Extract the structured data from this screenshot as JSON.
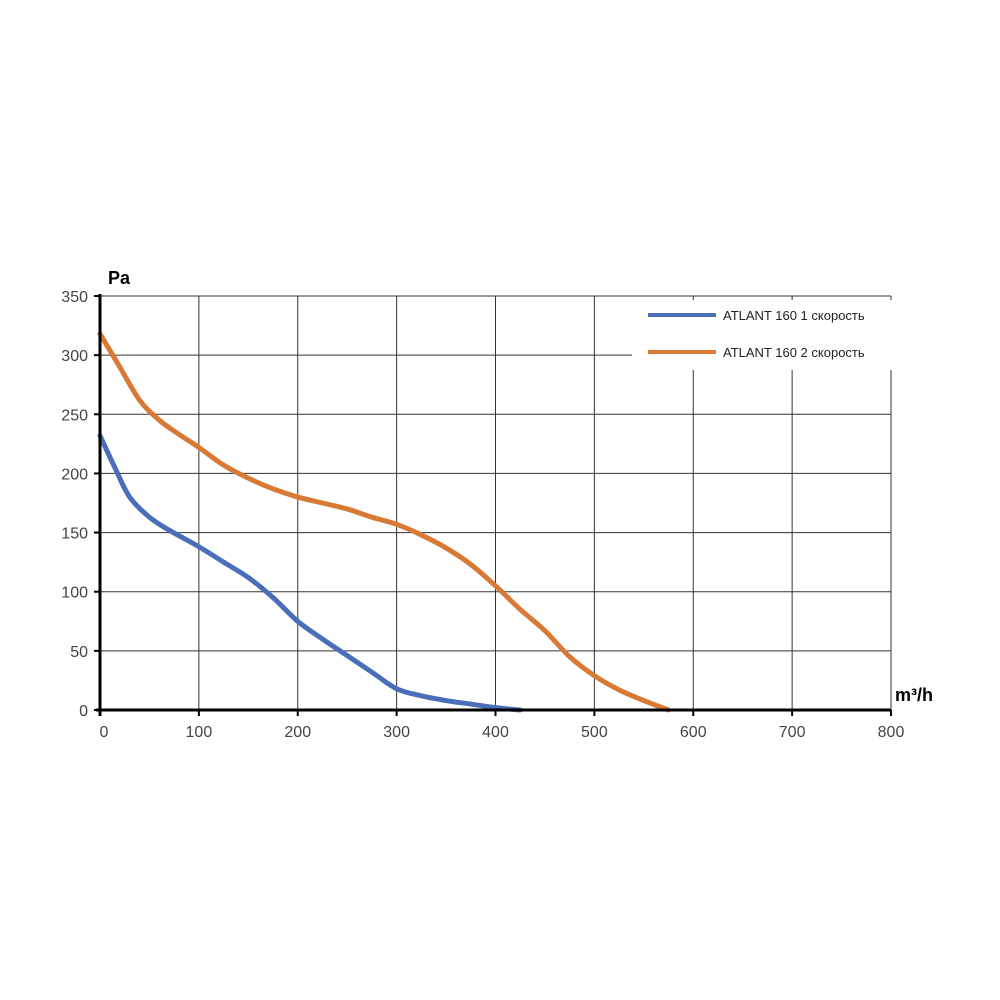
{
  "chart_data": {
    "type": "line",
    "title": "",
    "xlabel": "m³/h",
    "ylabel": "Pa",
    "xlim": [
      0,
      800
    ],
    "ylim": [
      0,
      350
    ],
    "xticks": [
      0,
      100,
      200,
      300,
      400,
      500,
      600,
      700,
      800
    ],
    "yticks": [
      0,
      50,
      100,
      150,
      200,
      250,
      300,
      350
    ],
    "grid": true,
    "legend_placement": "top-right",
    "series": [
      {
        "name": "ATLANT 160 1 скорость",
        "color": "#4a6fb8",
        "x": [
          0,
          15,
          30,
          50,
          70,
          100,
          125,
          150,
          175,
          200,
          225,
          250,
          275,
          300,
          325,
          350,
          375,
          400,
          425
        ],
        "y": [
          232,
          205,
          180,
          163,
          152,
          138,
          125,
          112,
          95,
          75,
          60,
          46,
          32,
          18,
          12,
          8,
          5,
          2,
          0
        ]
      },
      {
        "name": "ATLANT 160 2 скорость",
        "color": "#d87a36",
        "x": [
          0,
          20,
          40,
          60,
          80,
          100,
          125,
          150,
          175,
          200,
          225,
          250,
          275,
          300,
          325,
          350,
          375,
          400,
          425,
          450,
          475,
          500,
          525,
          550,
          575
        ],
        "y": [
          318,
          290,
          262,
          245,
          233,
          222,
          207,
          196,
          187,
          180,
          175,
          170,
          163,
          157,
          148,
          137,
          123,
          105,
          85,
          67,
          45,
          29,
          17,
          8,
          0
        ]
      }
    ]
  }
}
